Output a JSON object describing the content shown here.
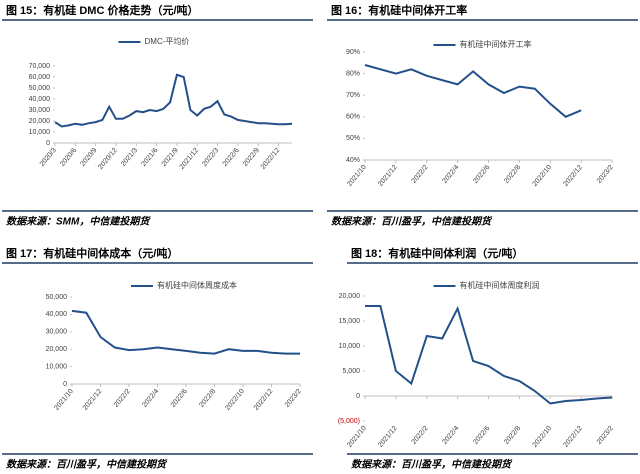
{
  "chart_data": [
    {
      "type": "line",
      "title": "图 15：有机硅 DMC 价格走势（元/吨）",
      "source": "数据来源：SMM，中信建投期货",
      "categories": [
        "2020/3",
        null,
        null,
        "2020/6",
        null,
        null,
        "2020/9",
        null,
        null,
        "2020/12",
        null,
        null,
        "2021/3",
        null,
        null,
        "2021/6",
        null,
        null,
        "2021/9",
        null,
        null,
        "2021/12",
        null,
        null,
        "2022/3",
        null,
        null,
        "2022/6",
        null,
        null,
        "2022/9",
        null,
        null,
        "2022/12",
        null,
        null
      ],
      "series": [
        {
          "name": "DMC-平均价",
          "color": "#24508a",
          "values": [
            19000,
            15000,
            16000,
            17500,
            16500,
            18000,
            19000,
            21000,
            33000,
            22000,
            22000,
            25000,
            29000,
            28000,
            30000,
            29000,
            31000,
            37000,
            62000,
            60000,
            30000,
            25000,
            31000,
            33000,
            38000,
            26000,
            24000,
            21000,
            20000,
            19000,
            18000,
            18000,
            17500,
            17000,
            17000,
            17500
          ]
        }
      ],
      "ylim": [
        0,
        70000
      ],
      "yticks": [
        0,
        {
          "value": 10000,
          "label": "10,000"
        },
        {
          "value": 20000,
          "label": "20,000"
        },
        {
          "value": 30000,
          "label": "30,000"
        },
        {
          "value": 40000,
          "label": "40,000"
        },
        {
          "value": 50000,
          "label": "50,000"
        },
        {
          "value": 60000,
          "label": "60,000"
        },
        {
          "value": 70000,
          "label": "70,000"
        }
      ]
    },
    {
      "type": "line",
      "title": "图 16：有机硅中间体开工率",
      "source": "数据来源：百川盈孚，中信建投期货",
      "categories": [
        "2021/10",
        null,
        "2021/12",
        null,
        "2022/2",
        null,
        "2022/4",
        null,
        "2022/6",
        null,
        "2022/8",
        null,
        "2022/10",
        null,
        "2022/12",
        null,
        "2023/2"
      ],
      "series": [
        {
          "name": "有机硅中间体开工率",
          "color": "#24508a",
          "values": [
            84,
            82,
            80,
            82,
            79,
            77,
            75,
            81,
            75,
            71,
            74,
            73,
            66,
            60,
            63,
            null,
            null
          ]
        }
      ],
      "ylim": [
        40,
        90
      ],
      "yticks": [
        {
          "value": 40,
          "label": "40%"
        },
        {
          "value": 50,
          "label": "50%"
        },
        {
          "value": 60,
          "label": "60%"
        },
        {
          "value": 70,
          "label": "70%"
        },
        {
          "value": 80,
          "label": "80%"
        },
        {
          "value": 90,
          "label": "90%"
        }
      ]
    },
    {
      "type": "line",
      "title": "图 17：有机硅中间体成本（元/吨）",
      "source": "数据来源：百川盈孚，中信建投期货",
      "categories": [
        "2021/10",
        null,
        "2021/12",
        null,
        "2022/2",
        null,
        "2022/4",
        null,
        "2022/6",
        null,
        "2022/8",
        null,
        "2022/10",
        null,
        "2022/12",
        null,
        "2023/2"
      ],
      "series": [
        {
          "name": "有机硅中间体周度成本",
          "color": "#24508a",
          "values": [
            42000,
            41000,
            27000,
            21000,
            19500,
            20000,
            21000,
            20000,
            19000,
            18000,
            17500,
            20000,
            19000,
            19000,
            18000,
            17500,
            17500
          ]
        }
      ],
      "ylim": [
        0,
        50000
      ],
      "yticks": [
        0,
        {
          "value": 10000,
          "label": "10,000"
        },
        {
          "value": 20000,
          "label": "20,000"
        },
        {
          "value": 30000,
          "label": "30,000"
        },
        {
          "value": 40000,
          "label": "40,000"
        },
        {
          "value": 50000,
          "label": "50,000"
        }
      ]
    },
    {
      "type": "line",
      "title": "图 18：有机硅中间体利润（元/吨）",
      "source": "数据来源：百川盈孚，中信建投期货",
      "categories": [
        "2021/10",
        null,
        "2021/12",
        null,
        "2022/2",
        null,
        "2022/4",
        null,
        "2022/6",
        null,
        "2022/8",
        null,
        "2022/10",
        null,
        "2022/12",
        null,
        "2023/2"
      ],
      "series": [
        {
          "name": "有机硅中间体周度利润",
          "color": "#24508a",
          "values": [
            18000,
            18000,
            5000,
            2500,
            12000,
            11500,
            17500,
            7000,
            6000,
            4000,
            3000,
            1000,
            -1500,
            -1000,
            -800,
            -500,
            -300
          ]
        }
      ],
      "ylim": [
        -5000,
        20000
      ],
      "yticks": [
        {
          "value": -5000,
          "label": "(5,000)"
        },
        0,
        {
          "value": 5000,
          "label": "5,000"
        },
        {
          "value": 10000,
          "label": "10,000"
        },
        {
          "value": 15000,
          "label": "15,000"
        },
        {
          "value": 20000,
          "label": "20,000"
        }
      ]
    }
  ]
}
